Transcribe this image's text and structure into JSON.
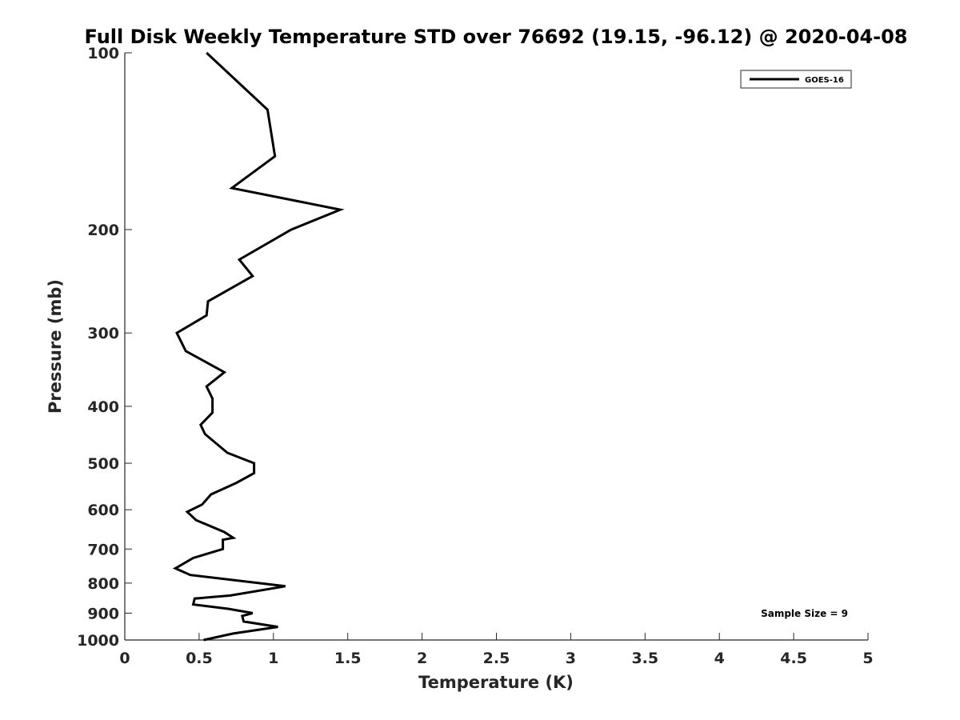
{
  "chart_data": {
    "type": "line",
    "title": "Full Disk Weekly Temperature STD over 76692 (19.15, -96.12) @ 2020-04-08",
    "xlabel": "Temperature (K)",
    "ylabel": "Pressure (mb)",
    "xlim": [
      0,
      5
    ],
    "ylim": [
      100,
      1000
    ],
    "y_scale": "log",
    "y_reversed": true,
    "grid": false,
    "legend_position": "top-right",
    "x_ticks": [
      "0",
      "0.5",
      "1",
      "1.5",
      "2",
      "2.5",
      "3",
      "3.5",
      "4",
      "4.5",
      "5"
    ],
    "x_tick_values": [
      0,
      0.5,
      1,
      1.5,
      2,
      2.5,
      3,
      3.5,
      4,
      4.5,
      5
    ],
    "y_ticks": [
      "100",
      "200",
      "300",
      "400",
      "500",
      "600",
      "700",
      "800",
      "900",
      "1000"
    ],
    "y_tick_values": [
      100,
      200,
      300,
      400,
      500,
      600,
      700,
      800,
      900,
      1000
    ],
    "series": [
      {
        "name": "GOES-16",
        "color": "#000000",
        "x": [
          0.55,
          0.96,
          1.01,
          0.72,
          1.45,
          1.12,
          0.77,
          0.86,
          0.56,
          0.55,
          0.35,
          0.41,
          0.67,
          0.55,
          0.59,
          0.59,
          0.51,
          0.54,
          0.69,
          0.87,
          0.87,
          0.75,
          0.58,
          0.52,
          0.42,
          0.48,
          0.67,
          0.73,
          0.66,
          0.66,
          0.46,
          0.34,
          0.44,
          1.08,
          0.71,
          0.47,
          0.46,
          0.7,
          0.86,
          0.79,
          0.8,
          1.03,
          0.73,
          0.53
        ],
        "y": [
          100,
          125,
          150,
          170,
          185,
          200,
          225,
          240,
          265,
          280,
          300,
          322,
          350,
          370,
          388,
          410,
          430,
          446,
          480,
          500,
          520,
          540,
          565,
          588,
          605,
          625,
          655,
          670,
          675,
          700,
          725,
          755,
          775,
          810,
          840,
          850,
          870,
          885,
          900,
          910,
          930,
          950,
          975,
          1000
        ]
      }
    ],
    "annotations": [
      "Sample Size = 9"
    ]
  }
}
